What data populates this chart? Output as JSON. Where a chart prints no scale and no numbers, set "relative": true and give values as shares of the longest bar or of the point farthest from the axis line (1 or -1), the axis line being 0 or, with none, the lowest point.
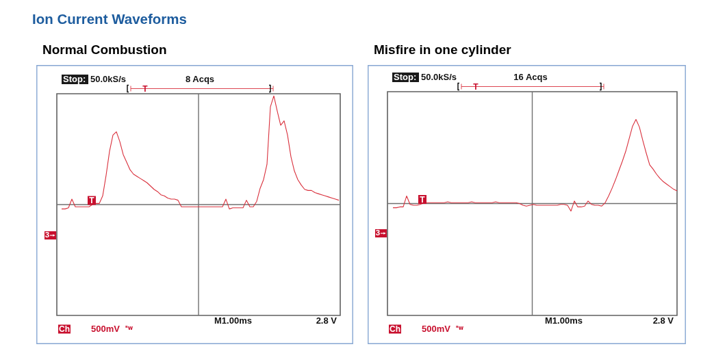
{
  "chart_data": [
    {
      "type": "other",
      "title": "Ion Current Waveforms"
    },
    {
      "type": "line",
      "title": "Normal Combustion",
      "relative": true,
      "categories": [
        null,
        null,
        null,
        null,
        null,
        null,
        null,
        null,
        null,
        null,
        null,
        null,
        null,
        null,
        null,
        null,
        null,
        null,
        null,
        null,
        null,
        null,
        null,
        null,
        null,
        null,
        null,
        null,
        null,
        null,
        null,
        null,
        null,
        null,
        null,
        null,
        null,
        null,
        null,
        null,
        null,
        null,
        null,
        null,
        null,
        null,
        null,
        null,
        null,
        null,
        null,
        null,
        null,
        null,
        null,
        null,
        null,
        null,
        null,
        null,
        null,
        null,
        null,
        null,
        null,
        null,
        null,
        null,
        null,
        null,
        null,
        null,
        null,
        null,
        null,
        null,
        null,
        null,
        null,
        null,
        null,
        null
      ],
      "series": [
        {
          "color": "#d9303c",
          "values": [
            -0.04,
            -0.04,
            -0.03,
            0.05,
            -0.02,
            -0.02,
            -0.02,
            -0.02,
            -0.02,
            0.0,
            0.01,
            0.01,
            0.08,
            0.27,
            0.49,
            0.64,
            0.67,
            0.58,
            0.46,
            0.39,
            0.32,
            0.28,
            0.26,
            0.24,
            0.22,
            0.2,
            0.17,
            0.14,
            0.12,
            0.09,
            0.08,
            0.06,
            0.05,
            0.05,
            0.04,
            -0.02,
            -0.02,
            -0.02,
            -0.02,
            -0.02,
            -0.02,
            -0.02,
            -0.02,
            -0.02,
            -0.02,
            -0.02,
            -0.02,
            -0.02,
            0.05,
            -0.04,
            -0.03,
            -0.03,
            -0.03,
            -0.03,
            0.04,
            -0.02,
            -0.02,
            0.03,
            0.15,
            0.23,
            0.37,
            0.9,
            1,
            0.86,
            0.73,
            0.77,
            0.64,
            0.44,
            0.31,
            0.23,
            0.18,
            0.14,
            0.13,
            0.13,
            0.11,
            0.1,
            0.09,
            0.08,
            0.07,
            0.06,
            0.05,
            0.04
          ]
        }
      ],
      "annotations": [
        "Stop:",
        "50.0kS/s",
        "8 Acqs",
        "T",
        "T",
        "3",
        "Ch",
        "500mV",
        "ᴮw",
        "M1.00ms",
        "2.8 V"
      ]
    },
    {
      "type": "line",
      "title": "Misfire in one cylinder",
      "relative": true,
      "categories": [
        null,
        null,
        null,
        null,
        null,
        null,
        null,
        null,
        null,
        null,
        null,
        null,
        null,
        null,
        null,
        null,
        null,
        null,
        null,
        null,
        null,
        null,
        null,
        null,
        null,
        null,
        null,
        null,
        null,
        null,
        null,
        null,
        null,
        null,
        null,
        null,
        null,
        null,
        null,
        null,
        null,
        null,
        null,
        null,
        null,
        null,
        null,
        null,
        null,
        null,
        null,
        null,
        null,
        null,
        null,
        null,
        null,
        null,
        null,
        null,
        null,
        null,
        null,
        null,
        null,
        null,
        null,
        null,
        null,
        null,
        null,
        null,
        null,
        null,
        null,
        null,
        null,
        null,
        null,
        null,
        null,
        null,
        null,
        null
      ],
      "series": [
        {
          "color": "#d9303c",
          "values": [
            -0.05,
            -0.05,
            -0.04,
            -0.04,
            0.09,
            -0.01,
            -0.02,
            -0.02,
            -0.01,
            0.01,
            0.01,
            0.01,
            0.01,
            0.01,
            0.01,
            0.01,
            0.02,
            0.01,
            0.01,
            0.01,
            0.01,
            0.01,
            0.01,
            0.02,
            0.01,
            0.01,
            0.01,
            0.01,
            0.01,
            0.01,
            0.02,
            0.01,
            0.01,
            0.01,
            0.01,
            0.01,
            0.01,
            0.0,
            -0.02,
            -0.03,
            -0.02,
            -0.01,
            -0.02,
            -0.02,
            -0.02,
            -0.02,
            -0.02,
            -0.02,
            -0.02,
            -0.01,
            -0.01,
            -0.02,
            -0.09,
            0.03,
            -0.04,
            -0.04,
            -0.03,
            0.03,
            -0.01,
            -0.02,
            -0.02,
            -0.03,
            0.01,
            0.09,
            0.18,
            0.28,
            0.39,
            0.5,
            0.62,
            0.77,
            0.92,
            1,
            0.91,
            0.75,
            0.6,
            0.46,
            0.41,
            0.35,
            0.3,
            0.26,
            0.23,
            0.2,
            0.17,
            0.15
          ]
        }
      ],
      "annotations": [
        "Stop:",
        "50.0kS/s",
        "16 Acqs",
        "T",
        "T",
        "3",
        "Ch",
        "500mV",
        "ᴮw",
        "M1.00ms",
        "2.8 V"
      ]
    }
  ]
}
